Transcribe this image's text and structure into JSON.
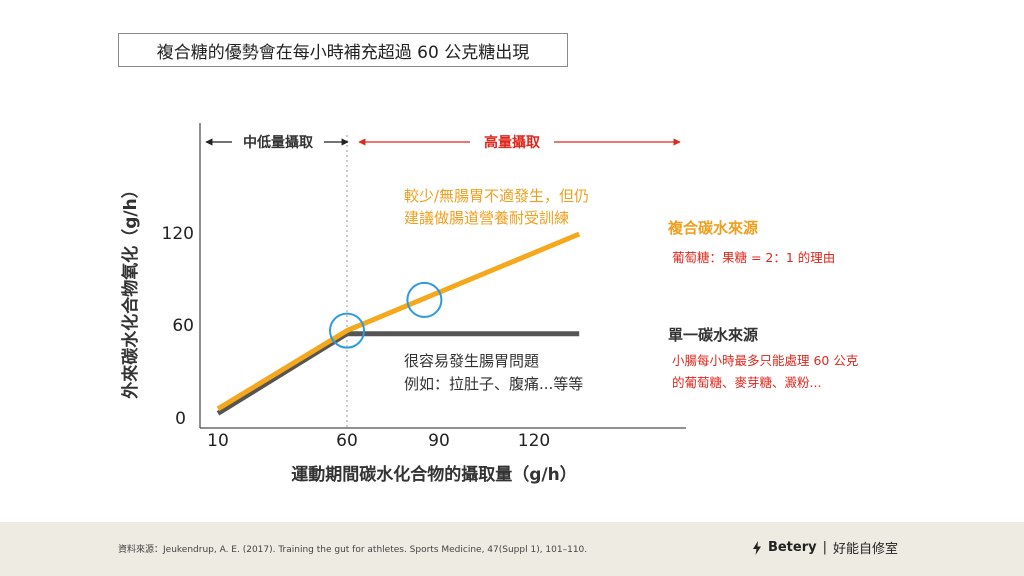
{
  "title": "複合糖的優勢會在每小時補充超過 60 公克糖出現",
  "chart_data": {
    "type": "line",
    "xlabel": "運動期間碳水化合物的攝取量（g/h）",
    "ylabel": "外來碳水化合物氧化（g/h）",
    "x_ticks": [
      10,
      60,
      90,
      120
    ],
    "y_ticks": [
      0,
      60,
      120
    ],
    "series": [
      {
        "name": "複合碳水來源",
        "color": "#f5a81c",
        "points": [
          [
            10,
            6
          ],
          [
            60,
            57
          ],
          [
            150,
            120
          ]
        ]
      },
      {
        "name": "單一碳水來源",
        "color": "#555555",
        "points": [
          [
            10,
            3
          ],
          [
            60,
            55
          ],
          [
            150,
            55
          ]
        ]
      }
    ],
    "regions": {
      "low": "中低量攝取",
      "high": "高量攝取",
      "divider_x": 60
    },
    "annotations": {
      "multi_note": [
        "較少/無腸胃不適發生，但仍",
        "建議做腸道營養耐受訓練"
      ],
      "multi_label": "複合碳水來源",
      "multi_reason": "葡萄糖：果糖 = 2：1 的理由",
      "single_label": "單一碳水來源",
      "single_reason": [
        "小腸每小時最多只能處理 60 公克",
        "的葡萄糖、麥芽糖、澱粉..."
      ],
      "single_note": [
        "很容易發生腸胃問題",
        "例如：拉肚子、腹痛...等等"
      ]
    },
    "highlights": [
      [
        60,
        57
      ],
      [
        90,
        77
      ]
    ],
    "colors": {
      "orange": "#f5a81c",
      "gray": "#555555",
      "red": "#e0281e",
      "circle": "#2b9be0",
      "orange_text": "#f0a020"
    }
  },
  "footer": {
    "source": "資料來源：Jeukendrup, A. E. (2017). Training the gut for athletes. Sports Medicine, 47(Suppl 1), 101–110.",
    "brand": "Betery",
    "brand_sep": "|",
    "brand_zh": "好能自修室"
  }
}
